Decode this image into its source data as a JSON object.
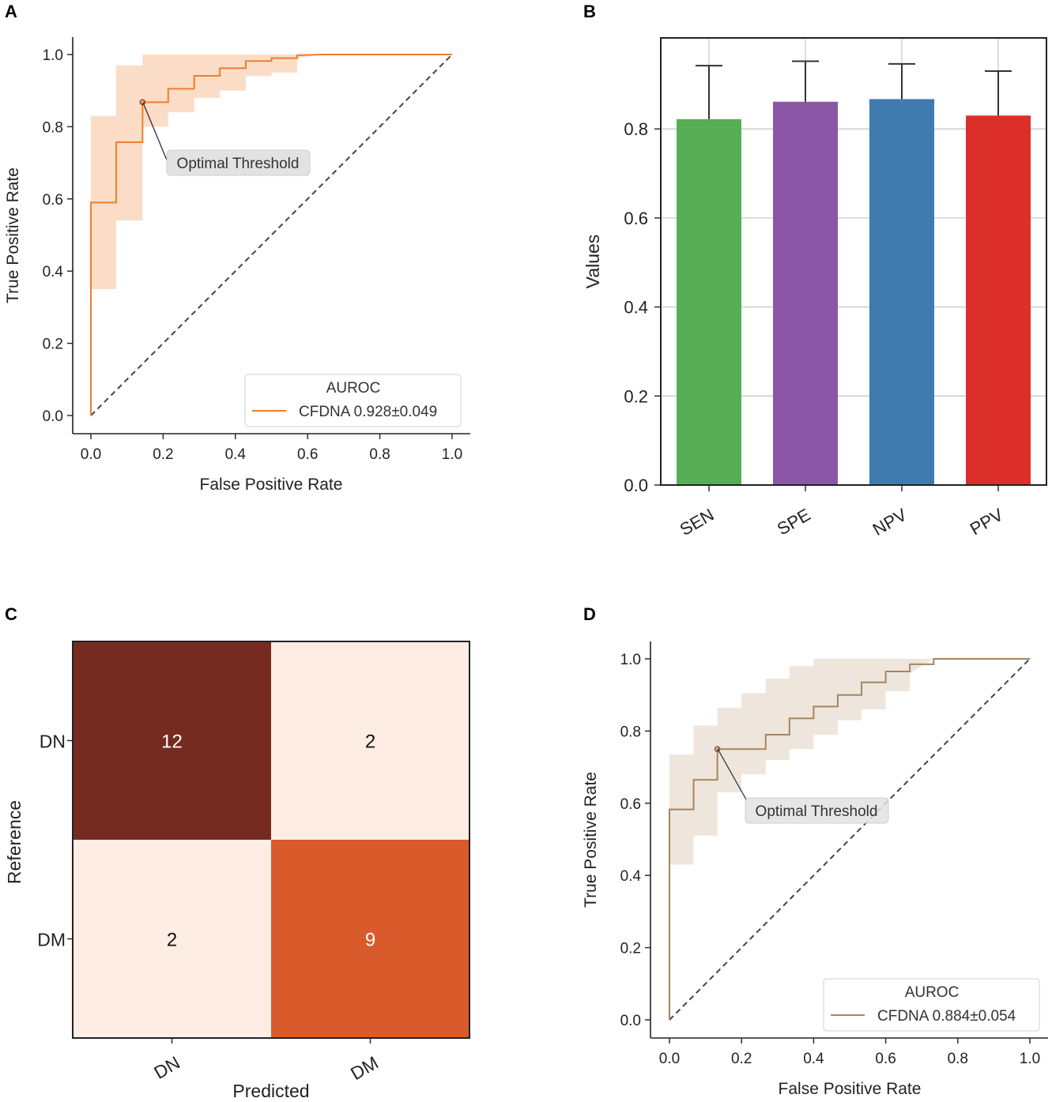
{
  "colors": {
    "roc_a": "#f07d2a",
    "roc_a_band": "#fad7bd",
    "roc_d": "#a8845e",
    "roc_d_band": "#ebe2d6",
    "cm_high": "#762b20",
    "cm_mid": "#d95b2c",
    "cm_low": "#fdede3",
    "bar_colors": [
      "#58ae54",
      "#8a56a5",
      "#3f7baf",
      "#dd2f2a"
    ]
  },
  "chart_data": [
    {
      "panel": "A",
      "type": "line",
      "xlabel": "False Positive Rate",
      "ylabel": "True Positive Rate",
      "xlim": [
        0.0,
        1.0
      ],
      "ylim": [
        0.0,
        1.0
      ],
      "xticks": [
        "0.0",
        "0.2",
        "0.4",
        "0.6",
        "0.8",
        "1.0"
      ],
      "yticks": [
        "0.0",
        "0.2",
        "0.4",
        "0.6",
        "0.8",
        "1.0"
      ],
      "roc_x": [
        0,
        0,
        0.07,
        0.07,
        0.143,
        0.143,
        0.214,
        0.214,
        0.286,
        0.286,
        0.357,
        0.357,
        0.429,
        0.429,
        0.5,
        0.5,
        0.571,
        0.571,
        0.643,
        1.0
      ],
      "roc_y": [
        0,
        0.59,
        0.59,
        0.757,
        0.757,
        0.868,
        0.868,
        0.905,
        0.905,
        0.941,
        0.941,
        0.962,
        0.962,
        0.982,
        0.982,
        0.99,
        0.99,
        0.998,
        1.0,
        1.0
      ],
      "band_x": [
        0,
        0.07,
        0.07,
        0.143,
        0.143,
        0.214,
        0.214,
        0.286,
        0.286,
        0.357,
        0.357,
        0.429,
        0.429,
        0.5,
        0.5,
        0.571,
        0.571,
        0.643,
        1.0
      ],
      "band_upper": [
        0.83,
        0.83,
        0.97,
        0.97,
        1.0,
        1.0,
        1.0,
        1.0,
        1.0,
        1.0,
        1.0,
        1.0,
        1.0,
        1.0,
        1.0,
        1.0,
        1.0,
        1.0,
        1.0
      ],
      "band_lower": [
        0.35,
        0.35,
        0.54,
        0.54,
        0.8,
        0.8,
        0.84,
        0.84,
        0.88,
        0.88,
        0.9,
        0.9,
        0.94,
        0.94,
        0.95,
        0.95,
        0.99,
        1.0,
        1.0
      ],
      "chance_line": [
        [
          0,
          0
        ],
        [
          1,
          1
        ]
      ],
      "optimal_point": [
        0.143,
        0.868
      ],
      "annotation": "Optimal Threshold",
      "legend_title": "AUROC",
      "legend_label": "CFDNA 0.928±0.049",
      "legend_loc": "lower-right"
    },
    {
      "panel": "B",
      "type": "bar",
      "ylabel": "Values",
      "categories": [
        "SEN",
        "SPE",
        "NPV",
        "PPV"
      ],
      "values": [
        0.822,
        0.861,
        0.867,
        0.83
      ],
      "error_upper": [
        0.942,
        0.952,
        0.946,
        0.93
      ],
      "ylim": [
        0.0,
        1.0
      ],
      "yticks": [
        "0.0",
        "0.2",
        "0.4",
        "0.6",
        "0.8"
      ],
      "grid": true
    },
    {
      "panel": "C",
      "type": "heatmap",
      "xlabel": "Predicted",
      "ylabel": "Reference",
      "rows": [
        "DN",
        "DM"
      ],
      "cols": [
        "DN",
        "DM"
      ],
      "matrix": [
        [
          12,
          2
        ],
        [
          2,
          9
        ]
      ]
    },
    {
      "panel": "D",
      "type": "line",
      "xlabel": "False Positive Rate",
      "ylabel": "True Positive Rate",
      "xlim": [
        0.0,
        1.0
      ],
      "ylim": [
        0.0,
        1.0
      ],
      "xticks": [
        "0.0",
        "0.2",
        "0.4",
        "0.6",
        "0.8",
        "1.0"
      ],
      "yticks": [
        "0.0",
        "0.2",
        "0.4",
        "0.6",
        "0.8",
        "1.0"
      ],
      "roc_x": [
        0,
        0,
        0.067,
        0.067,
        0.133,
        0.133,
        0.2,
        0.2,
        0.267,
        0.267,
        0.333,
        0.333,
        0.4,
        0.4,
        0.467,
        0.467,
        0.533,
        0.533,
        0.6,
        0.6,
        0.667,
        0.667,
        0.733,
        0.733,
        1.0
      ],
      "roc_y": [
        0,
        0.583,
        0.583,
        0.665,
        0.665,
        0.75,
        0.75,
        0.75,
        0.75,
        0.79,
        0.79,
        0.835,
        0.835,
        0.868,
        0.868,
        0.9,
        0.9,
        0.935,
        0.935,
        0.965,
        0.965,
        0.985,
        0.985,
        1.0,
        1.0
      ],
      "band_x": [
        0,
        0.067,
        0.067,
        0.133,
        0.133,
        0.2,
        0.2,
        0.267,
        0.267,
        0.333,
        0.333,
        0.4,
        0.4,
        0.467,
        0.467,
        0.533,
        0.533,
        0.6,
        0.6,
        0.667,
        0.667,
        0.733,
        1.0
      ],
      "band_upper": [
        0.735,
        0.735,
        0.815,
        0.815,
        0.865,
        0.865,
        0.905,
        0.905,
        0.945,
        0.945,
        0.98,
        0.98,
        1.0,
        1.0,
        1.0,
        1.0,
        1.0,
        1.0,
        1.0,
        1.0,
        1.0,
        1.0,
        1.0
      ],
      "band_lower": [
        0.43,
        0.43,
        0.51,
        0.51,
        0.63,
        0.63,
        0.68,
        0.68,
        0.72,
        0.72,
        0.75,
        0.75,
        0.79,
        0.79,
        0.83,
        0.83,
        0.86,
        0.86,
        0.91,
        0.91,
        0.96,
        1.0,
        1.0
      ],
      "chance_line": [
        [
          0,
          0
        ],
        [
          1,
          1
        ]
      ],
      "optimal_point": [
        0.133,
        0.75
      ],
      "annotation": "Optimal Threshold",
      "legend_title": "AUROC",
      "legend_label": "CFDNA 0.884±0.054",
      "legend_loc": "lower-right"
    }
  ]
}
